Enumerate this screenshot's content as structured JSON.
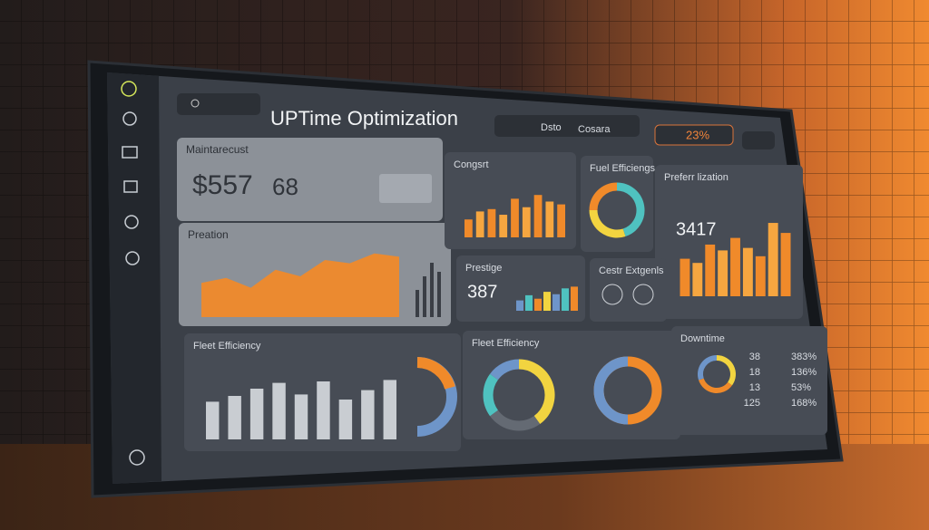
{
  "header": {
    "title": "UPTime Optimization",
    "tabs": [
      "Dsto",
      "Cosara"
    ],
    "badge": "23%"
  },
  "panels": [
    {
      "title": "Maintarecust",
      "value": "$557",
      "secondary": "68"
    },
    {
      "title": "Preation",
      "area": [
        42,
        48,
        36,
        58,
        50,
        70,
        66,
        78,
        74
      ]
    },
    {
      "title": "Congsrt",
      "bars": [
        38,
        55,
        60,
        48,
        82,
        64,
        90,
        76,
        70
      ]
    },
    {
      "title": "Fuel Efficiengs",
      "segments": [
        45,
        30,
        25
      ]
    },
    {
      "title": "Preferr lization",
      "value": "3417",
      "bars": [
        45,
        40,
        62,
        55,
        70,
        58,
        48,
        88,
        76
      ]
    },
    {
      "title": "Prestige",
      "value": "387",
      "bars": [
        30,
        45,
        35,
        55,
        48,
        65,
        70
      ]
    },
    {
      "title": "Cestr Extgenls"
    },
    {
      "title": "Fleet Efficiency",
      "bars": [
        52,
        60,
        70,
        78,
        62,
        80,
        55,
        68,
        82
      ]
    },
    {
      "title": "Fleet Efficiency",
      "segments": [
        40,
        25,
        20,
        15
      ]
    },
    {
      "title": "Downtime",
      "segments": [
        35,
        35,
        30
      ],
      "rows": [
        {
          "label": "38",
          "value": "383%"
        },
        {
          "label": "18",
          "value": "136%"
        },
        {
          "label": "13",
          "value": "53%"
        },
        {
          "label": "125",
          "value": "168%"
        }
      ]
    }
  ]
}
